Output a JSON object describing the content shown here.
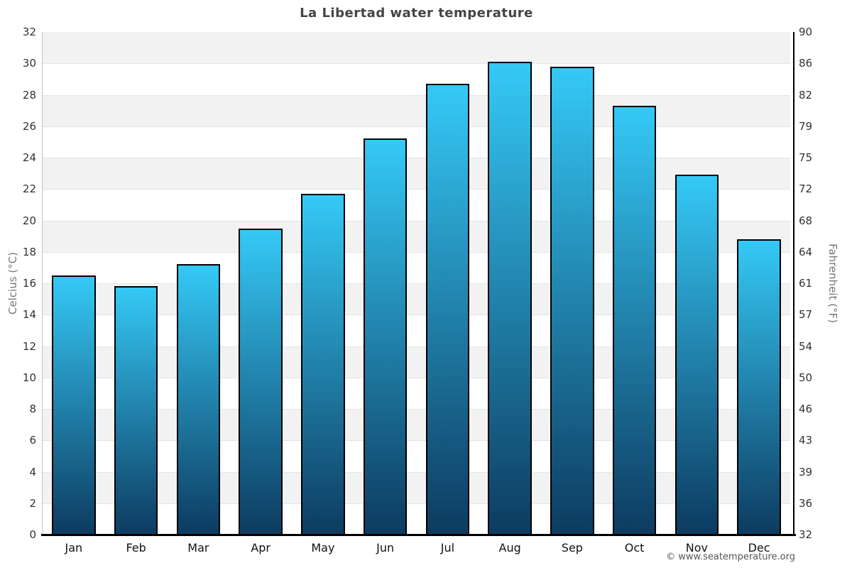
{
  "title": "La Libertad water temperature",
  "footer": "© www.seatemperature.org",
  "y_axis_left": {
    "label": "Celcius (°C)",
    "ticks": [
      32,
      30,
      28,
      26,
      24,
      22,
      20,
      18,
      16,
      14,
      12,
      10,
      8,
      6,
      4,
      2,
      0
    ]
  },
  "y_axis_right": {
    "label": "Fahrenheit (°F)",
    "ticks": [
      90,
      86,
      82,
      79,
      75,
      72,
      68,
      64,
      61,
      57,
      54,
      50,
      46,
      43,
      39,
      36,
      32
    ]
  },
  "chart_data": {
    "type": "bar",
    "title": "La Libertad water temperature",
    "categories": [
      "Jan",
      "Feb",
      "Mar",
      "Apr",
      "May",
      "Jun",
      "Jul",
      "Aug",
      "Sep",
      "Oct",
      "Nov",
      "Dec"
    ],
    "values": [
      16.5,
      15.8,
      17.2,
      19.5,
      21.7,
      25.2,
      28.7,
      30.1,
      29.8,
      27.3,
      22.9,
      18.8
    ],
    "series_name": "Water temperature (°C)",
    "xlabel": "",
    "ylabel": "Celcius (°C)",
    "ylabel_right": "Fahrenheit (°F)",
    "ylim": [
      0,
      32
    ],
    "y_tick_step": 2,
    "grid": "horizontal-bands",
    "legend": "none",
    "colors": {
      "bar_gradient_top": "#35c9f6",
      "bar_gradient_bottom": "#0d3b60",
      "bar_border": "#000000",
      "band_gray": "#f2f2f2",
      "band_white": "#ffffff",
      "gridline": "#e4e4e4",
      "axis_left_line": "#c3c3c3",
      "axis_right_line": "#000000",
      "axis_bottom_line": "#000000",
      "title_text": "#444444",
      "tick_text": "#333333",
      "axis_title_text": "#777777",
      "month_text": "#111111",
      "footer_text": "#555555"
    }
  }
}
